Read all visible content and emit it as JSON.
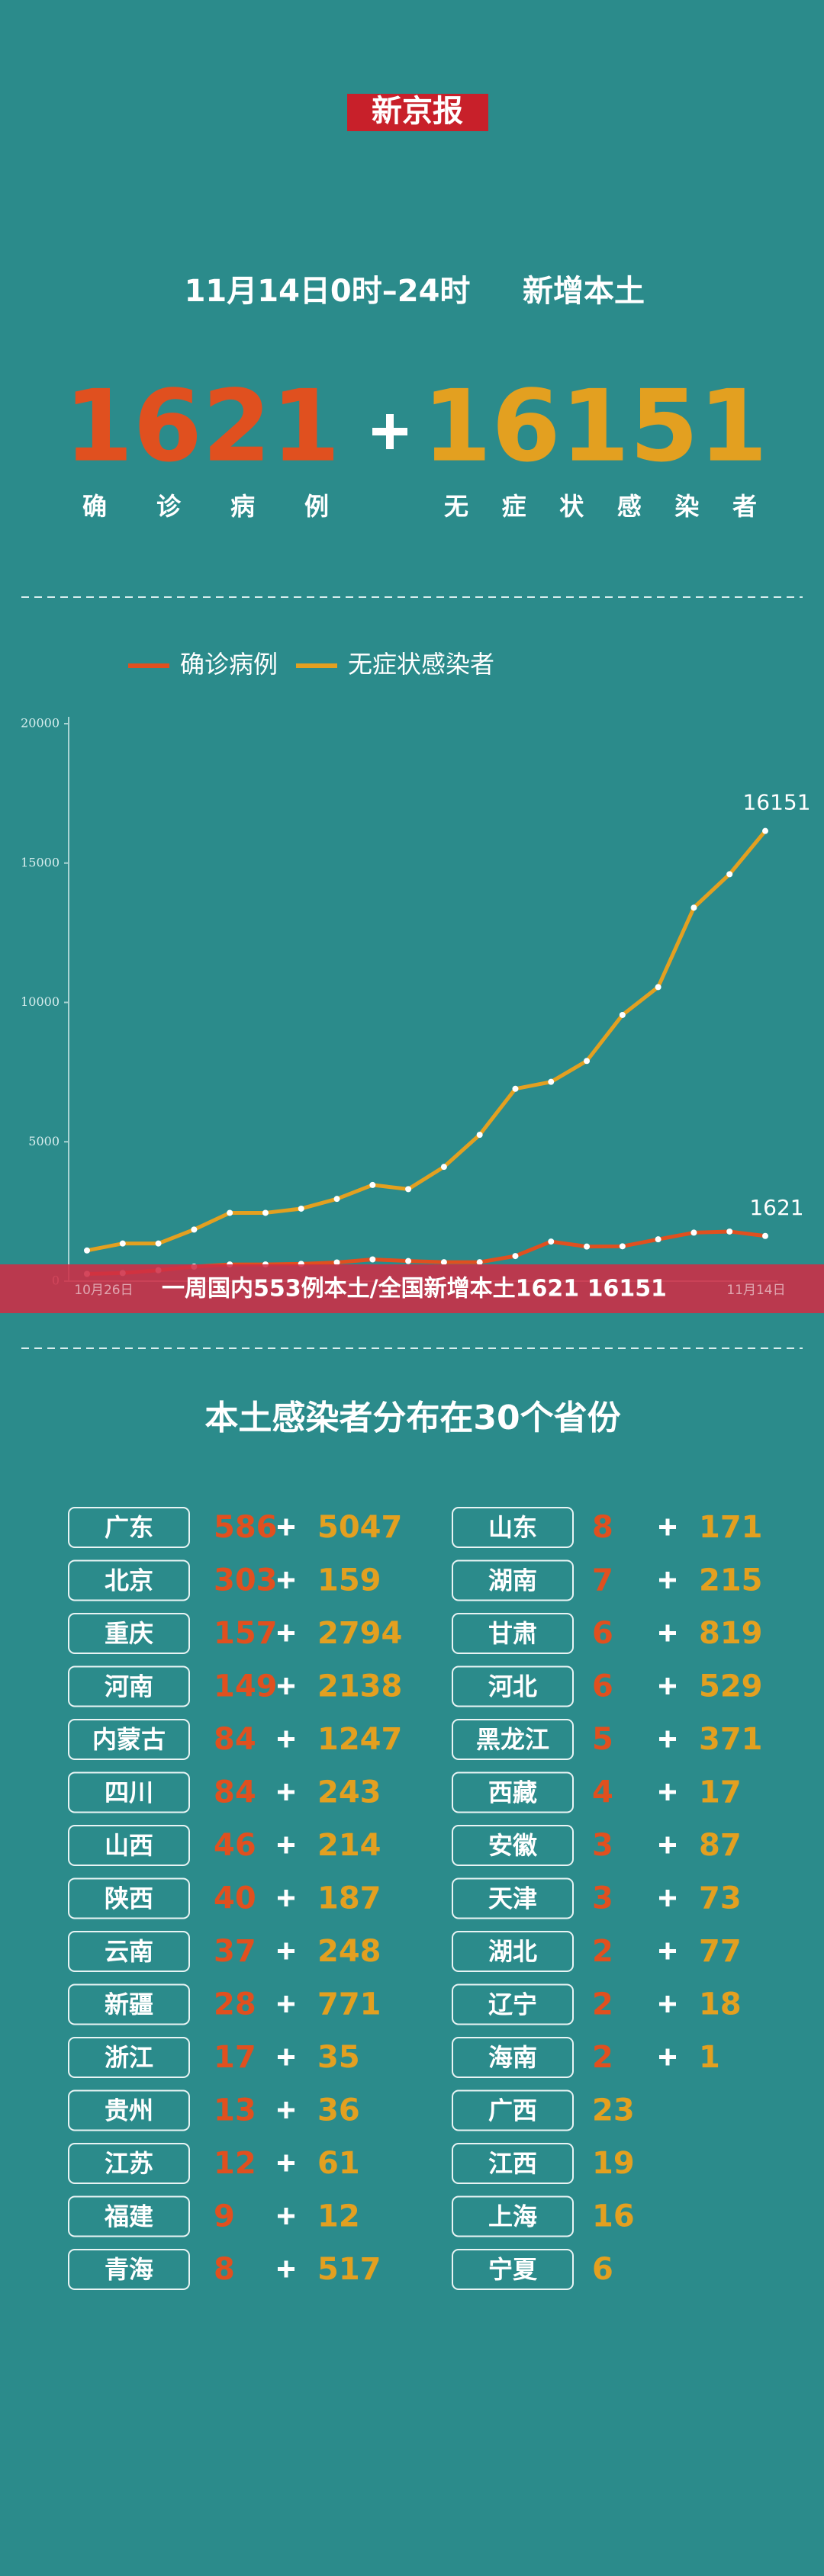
{
  "logo": "新京报",
  "header": {
    "period": "11月14日0时–24时",
    "label": "新增本土"
  },
  "totals": {
    "confirmed": 1621,
    "asymptomatic": 16151,
    "confirmed_label": "确诊病例",
    "asymptomatic_label": "无症状感染者"
  },
  "chart_data": {
    "type": "line",
    "categories": [
      "10月26日",
      null,
      null,
      null,
      null,
      null,
      null,
      null,
      null,
      null,
      null,
      null,
      null,
      null,
      null,
      null,
      null,
      null,
      null,
      "11月14日"
    ],
    "series": [
      {
        "name": "确诊病例",
        "color": "#e0501f",
        "values": [
          260,
          290,
          390,
          520,
          600,
          600,
          620,
          670,
          780,
          720,
          680,
          680,
          900,
          1420,
          1240,
          1250,
          1500,
          1740,
          1780,
          1621
        ]
      },
      {
        "name": "无症状感染者",
        "color": "#e3a020",
        "values": [
          1100,
          1350,
          1350,
          1850,
          2450,
          2450,
          2600,
          2950,
          3450,
          3300,
          4100,
          5250,
          6900,
          7150,
          7900,
          9550,
          10550,
          13400,
          14600,
          16151
        ]
      }
    ],
    "ylim": [
      0,
      20000
    ],
    "yticks": [
      0,
      5000,
      10000,
      15000,
      20000
    ]
  },
  "banner": "一周国内553例本土/全国新增本土1621 16151",
  "table": {
    "title": "本土感染者分布在30个省份",
    "left": [
      {
        "name": "广东",
        "confirmed": 586,
        "asymptomatic": 5047
      },
      {
        "name": "北京",
        "confirmed": 303,
        "asymptomatic": 159
      },
      {
        "name": "重庆",
        "confirmed": 157,
        "asymptomatic": 2794
      },
      {
        "name": "河南",
        "confirmed": 149,
        "asymptomatic": 2138
      },
      {
        "name": "内蒙古",
        "confirmed": 84,
        "asymptomatic": 1247
      },
      {
        "name": "四川",
        "confirmed": 84,
        "asymptomatic": 243
      },
      {
        "name": "山西",
        "confirmed": 46,
        "asymptomatic": 214
      },
      {
        "name": "陕西",
        "confirmed": 40,
        "asymptomatic": 187
      },
      {
        "name": "云南",
        "confirmed": 37,
        "asymptomatic": 248
      },
      {
        "name": "新疆",
        "confirmed": 28,
        "asymptomatic": 771
      },
      {
        "name": "浙江",
        "confirmed": 17,
        "asymptomatic": 35
      },
      {
        "name": "贵州",
        "confirmed": 13,
        "asymptomatic": 36
      },
      {
        "name": "江苏",
        "confirmed": 12,
        "asymptomatic": 61
      },
      {
        "name": "福建",
        "confirmed": 9,
        "asymptomatic": 12
      },
      {
        "name": "青海",
        "confirmed": 8,
        "asymptomatic": 517
      }
    ],
    "right": [
      {
        "name": "山东",
        "confirmed": 8,
        "asymptomatic": 171
      },
      {
        "name": "湖南",
        "confirmed": 7,
        "asymptomatic": 215
      },
      {
        "name": "甘肃",
        "confirmed": 6,
        "asymptomatic": 819
      },
      {
        "name": "河北",
        "confirmed": 6,
        "asymptomatic": 529
      },
      {
        "name": "黑龙江",
        "confirmed": 5,
        "asymptomatic": 371
      },
      {
        "name": "西藏",
        "confirmed": 4,
        "asymptomatic": 17
      },
      {
        "name": "安徽",
        "confirmed": 3,
        "asymptomatic": 87
      },
      {
        "name": "天津",
        "confirmed": 3,
        "asymptomatic": 73
      },
      {
        "name": "湖北",
        "confirmed": 2,
        "asymptomatic": 77
      },
      {
        "name": "辽宁",
        "confirmed": 2,
        "asymptomatic": 18
      },
      {
        "name": "海南",
        "confirmed": 2,
        "asymptomatic": 1
      },
      {
        "name": "广西",
        "asymptomatic": 23
      },
      {
        "name": "江西",
        "asymptomatic": 19
      },
      {
        "name": "上海",
        "asymptomatic": 16
      },
      {
        "name": "宁夏",
        "asymptomatic": 6
      }
    ]
  }
}
